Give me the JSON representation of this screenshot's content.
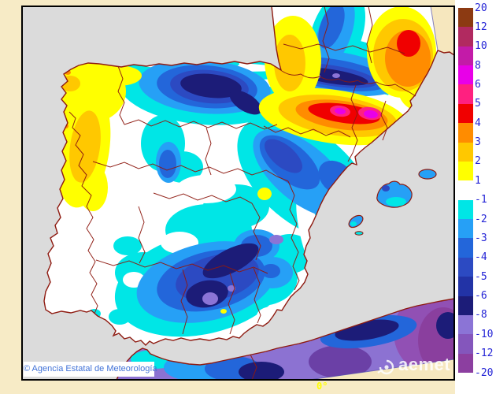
{
  "css_vars": {
    "page-bg": "#F7EBC6",
    "panel-bg": "#FFFFFF",
    "sea": "#DBDBDB",
    "neutral": "#FFFFFF",
    "outside-domain": "#F6E7BE",
    "border-line": "#8E1A10",
    "frame": "#000000",
    "domain-edge": "#5552AC",
    "africa-base": "#8C72D2",
    "label-blue": "#2424D6",
    "attribution-blue": "#4273D8",
    "lon-yellow": "#FFFF00",
    "pos1": "#FFFF00",
    "pos2": "#FFC800",
    "pos3": "#FF8C00",
    "pos4": "#F00000",
    "pos5": "#FF2080",
    "pos6": "#E800E8",
    "pos7": "#C31BA8",
    "pos8": "#B12A60",
    "pos9": "#8C3A12",
    "neg1": "#00E6E6",
    "neg2": "#26A0F6",
    "neg3": "#2366DA",
    "neg4": "#2C4AC2",
    "neg5": "#2233A6",
    "neg6": "#1C1C78",
    "neg7": "#8B74D6",
    "neg8": "#8456BC",
    "neg9": "#8C3FA0",
    "af-dark": "#6B40A6",
    "af-mag": "#9150B4",
    "af-mag2": "#8A3F9E"
  },
  "map": {
    "attribution": "© Agencia Estatal de Meteorología",
    "logo_text": "aemet",
    "longitude_label": "0°"
  },
  "colorbar": {
    "labels": [
      "20",
      "12",
      "10",
      "8",
      "6",
      "5",
      "4",
      "3",
      "2",
      "1",
      "-1",
      "-2",
      "-3",
      "-4",
      "-5",
      "-6",
      "-8",
      "-10",
      "-12",
      "-20"
    ],
    "block_colors": [
      "#8C3A12",
      "#B12A60",
      "#C31BA8",
      "#E800E8",
      "#FF2080",
      "#F00000",
      "#FF8C00",
      "#FFC800",
      "#FFFF00",
      "#FFFFFF",
      "#00E6E6",
      "#26A0F6",
      "#2366DA",
      "#2C4AC2",
      "#2233A6",
      "#1C1C78",
      "#8B74D6",
      "#8456BC",
      "#8C3FA0"
    ]
  }
}
